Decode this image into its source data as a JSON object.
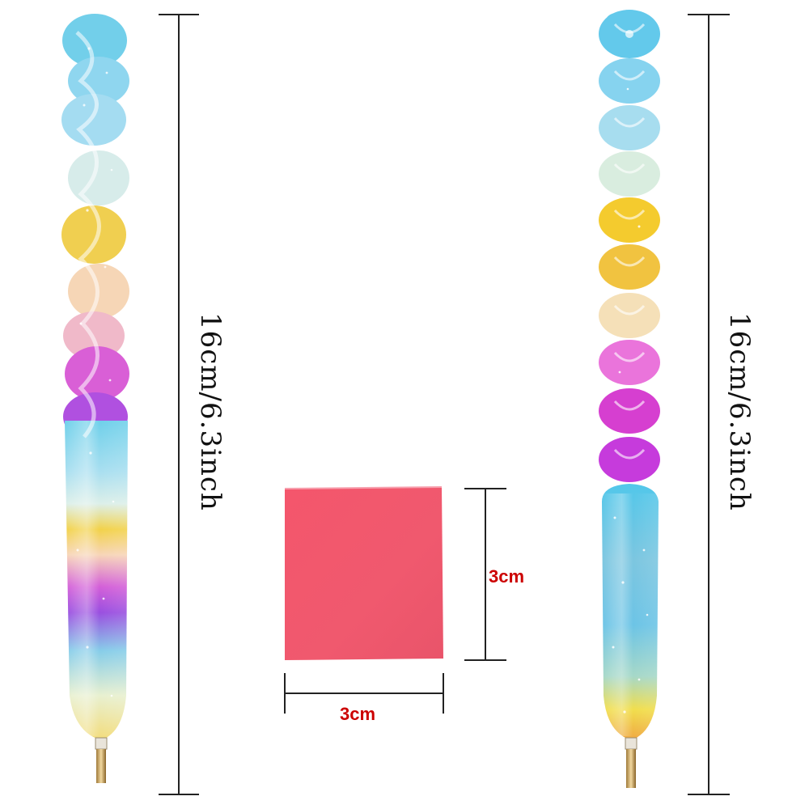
{
  "image": {
    "left_pen_label": "16cm/6.3inch",
    "right_pen_label": "16cm/6.3inch",
    "square_height_label": "3cm",
    "square_width_label": "3cm"
  },
  "colors": {
    "background": "#ffffff",
    "dimension_line": "#222222",
    "dimension_text_red": "#cc0000",
    "wax_square": "#f2526a",
    "pen_gradient": [
      "#6ccfe8",
      "#bfe6f0",
      "#f2d24a",
      "#f5c9a8",
      "#e24fc9",
      "#9b4ddb",
      "#7ecbe8",
      "#f5e26a",
      "#f2b24a"
    ]
  },
  "objects": [
    "twisted-pen-icon",
    "heart-stack-pen-icon",
    "wax-square-icon"
  ]
}
